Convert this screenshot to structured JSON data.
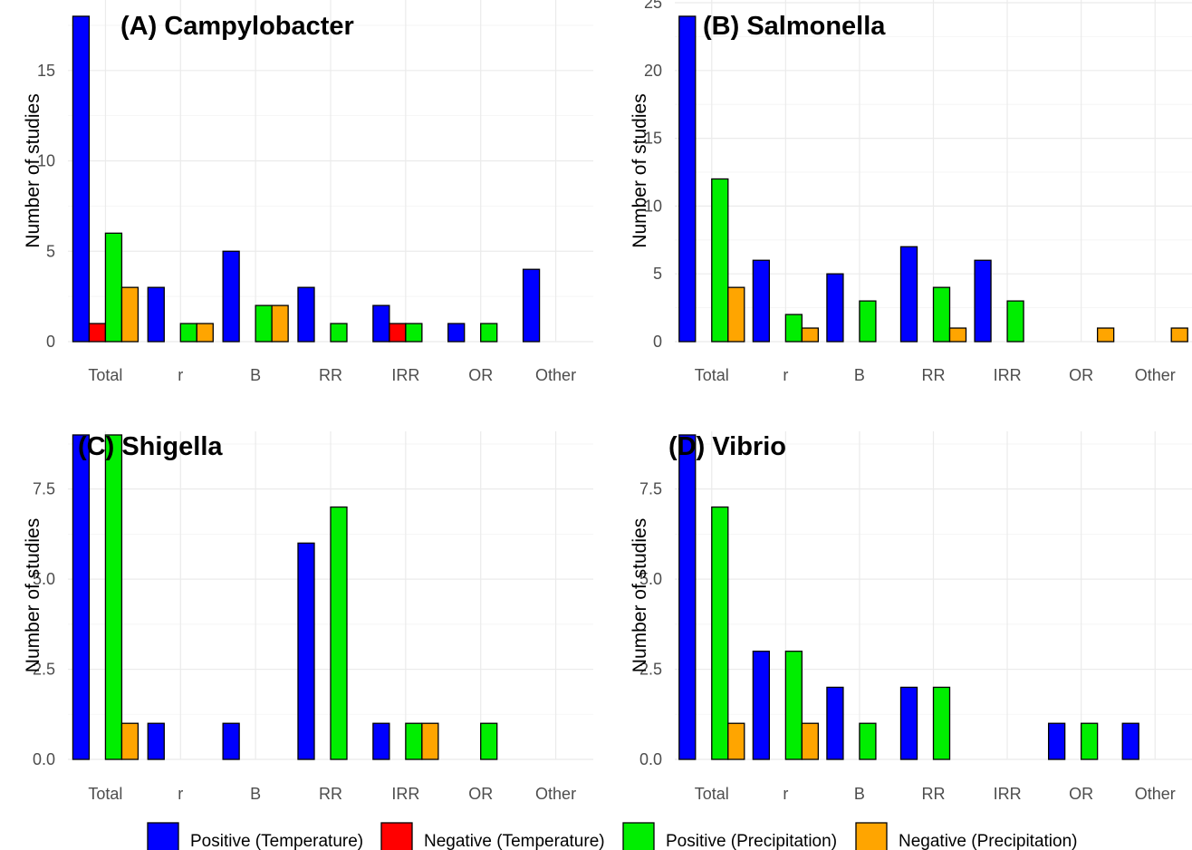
{
  "colors": {
    "positive_temperature": "#0000ff",
    "negative_temperature": "#ff0000",
    "positive_precipitation": "#00ee00",
    "negative_precipitation": "#ffa500",
    "grid": "#ebebeb"
  },
  "legend": {
    "position": "bottom",
    "items": [
      {
        "label": "Positive (Temperature)",
        "color": "#0000ff"
      },
      {
        "label": "Negative (Temperature)",
        "color": "#ff0000"
      },
      {
        "label": "Positive (Precipitation)",
        "color": "#00ee00"
      },
      {
        "label": "Negative (Precipitation)",
        "color": "#ffa500"
      }
    ]
  },
  "chart_data": [
    {
      "type": "bar",
      "title": "(A) Campylobacter",
      "ylabel": "Number of studies",
      "xlabel": "",
      "ylim": [
        0,
        18.9
      ],
      "yticks": [
        0,
        5,
        10,
        15
      ],
      "ytick_labels": [
        "0",
        "5",
        "10",
        "15"
      ],
      "grid": true,
      "categories": [
        "Total",
        "r",
        "B",
        "RR",
        "IRR",
        "OR",
        "Other"
      ],
      "series": [
        {
          "name": "Positive (Temperature)",
          "values": [
            18,
            3,
            5,
            3,
            2,
            1,
            4
          ]
        },
        {
          "name": "Negative (Temperature)",
          "values": [
            1,
            0,
            0,
            0,
            1,
            0,
            0
          ]
        },
        {
          "name": "Positive (Precipitation)",
          "values": [
            6,
            1,
            2,
            1,
            1,
            1,
            0
          ]
        },
        {
          "name": "Negative (Precipitation)",
          "values": [
            3,
            1,
            2,
            0,
            0,
            0,
            0
          ]
        }
      ]
    },
    {
      "type": "bar",
      "title": "(B) Salmonella",
      "ylabel": "Number of studies",
      "xlabel": "",
      "ylim": [
        0,
        25.2
      ],
      "yticks": [
        0,
        5,
        10,
        15,
        20,
        25
      ],
      "ytick_labels": [
        "0",
        "5",
        "10",
        "15",
        "20",
        "25"
      ],
      "grid": true,
      "categories": [
        "Total",
        "r",
        "B",
        "RR",
        "IRR",
        "OR",
        "Other"
      ],
      "series": [
        {
          "name": "Positive (Temperature)",
          "values": [
            24,
            6,
            5,
            7,
            6,
            0,
            0
          ]
        },
        {
          "name": "Negative (Temperature)",
          "values": [
            0,
            0,
            0,
            0,
            0,
            0,
            0
          ]
        },
        {
          "name": "Positive (Precipitation)",
          "values": [
            12,
            2,
            3,
            4,
            3,
            0,
            0
          ]
        },
        {
          "name": "Negative (Precipitation)",
          "values": [
            4,
            1,
            0,
            1,
            0,
            1,
            1
          ]
        }
      ]
    },
    {
      "type": "bar",
      "title": "(C) Shigella",
      "ylabel": "Number of studies",
      "xlabel": "",
      "ylim": [
        0,
        9.1
      ],
      "yticks": [
        0,
        2.5,
        5,
        7.5
      ],
      "ytick_labels": [
        "0.0",
        "2.5",
        "5.0",
        "7.5"
      ],
      "grid": true,
      "categories": [
        "Total",
        "r",
        "B",
        "RR",
        "IRR",
        "OR",
        "Other"
      ],
      "series": [
        {
          "name": "Positive (Temperature)",
          "values": [
            9,
            1,
            1,
            6,
            1,
            0,
            0
          ]
        },
        {
          "name": "Negative (Temperature)",
          "values": [
            0,
            0,
            0,
            0,
            0,
            0,
            0
          ]
        },
        {
          "name": "Positive (Precipitation)",
          "values": [
            9,
            0,
            0,
            7,
            1,
            1,
            0
          ]
        },
        {
          "name": "Negative (Precipitation)",
          "values": [
            1,
            0,
            0,
            0,
            1,
            0,
            0
          ]
        }
      ]
    },
    {
      "type": "bar",
      "title": "(D) Vibrio",
      "ylabel": "Number of studies",
      "xlabel": "",
      "ylim": [
        0,
        9.1
      ],
      "yticks": [
        0,
        2.5,
        5,
        7.5
      ],
      "ytick_labels": [
        "0.0",
        "2.5",
        "5.0",
        "7.5"
      ],
      "grid": true,
      "categories": [
        "Total",
        "r",
        "B",
        "RR",
        "IRR",
        "OR",
        "Other"
      ],
      "series": [
        {
          "name": "Positive (Temperature)",
          "values": [
            9,
            3,
            2,
            2,
            0,
            1,
            1
          ]
        },
        {
          "name": "Negative (Temperature)",
          "values": [
            0,
            0,
            0,
            0,
            0,
            0,
            0
          ]
        },
        {
          "name": "Positive (Precipitation)",
          "values": [
            7,
            3,
            1,
            2,
            0,
            1,
            0
          ]
        },
        {
          "name": "Negative (Precipitation)",
          "values": [
            1,
            1,
            0,
            0,
            0,
            0,
            0
          ]
        }
      ]
    }
  ]
}
